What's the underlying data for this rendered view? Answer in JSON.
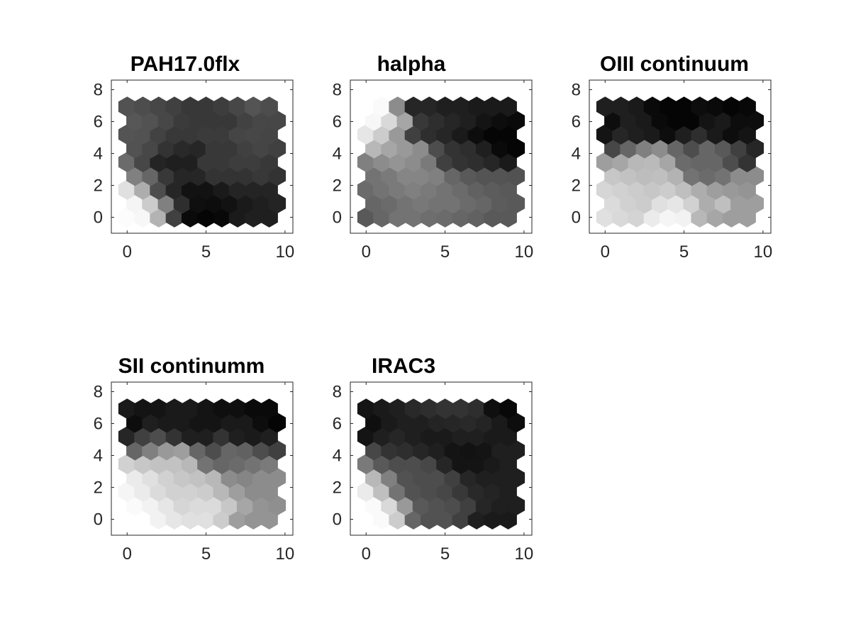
{
  "figure": {
    "background": "#ffffff"
  },
  "chart_data": [
    {
      "type": "heatmap",
      "title": "PAH17.0flx",
      "xlim": [
        -1,
        10.5
      ],
      "ylim": [
        -1,
        8.6
      ],
      "xticks": [
        "0",
        "5",
        "10"
      ],
      "yticks": [
        "0",
        "2",
        "4",
        "6",
        "8"
      ],
      "grid": false,
      "cell_layout": "hexagonal 10x9",
      "values": [
        [
          0.99,
          0.97,
          0.7,
          0.25,
          0.04,
          0.02,
          0.03,
          0.1,
          0.12,
          0.12
        ],
        [
          0.96,
          0.8,
          0.5,
          0.18,
          0.06,
          0.05,
          0.07,
          0.1,
          0.12,
          0.14
        ],
        [
          0.88,
          0.68,
          0.3,
          0.15,
          0.07,
          0.07,
          0.1,
          0.14,
          0.14,
          0.14
        ],
        [
          0.5,
          0.4,
          0.22,
          0.15,
          0.15,
          0.2,
          0.2,
          0.2,
          0.22,
          0.2
        ],
        [
          0.42,
          0.28,
          0.14,
          0.12,
          0.12,
          0.22,
          0.22,
          0.24,
          0.24,
          0.22
        ],
        [
          0.32,
          0.28,
          0.2,
          0.16,
          0.15,
          0.22,
          0.22,
          0.25,
          0.27,
          0.25
        ],
        [
          0.33,
          0.32,
          0.26,
          0.22,
          0.22,
          0.23,
          0.23,
          0.27,
          0.28,
          0.27
        ],
        [
          0.34,
          0.32,
          0.28,
          0.23,
          0.22,
          0.22,
          0.22,
          0.26,
          0.28,
          0.28
        ],
        [
          0.32,
          0.3,
          0.28,
          0.25,
          0.22,
          0.22,
          0.24,
          0.28,
          0.33,
          0.3
        ]
      ]
    },
    {
      "type": "heatmap",
      "title": "halpha",
      "xlim": [
        -1,
        10.5
      ],
      "ylim": [
        -1,
        8.6
      ],
      "xticks": [
        "0",
        "5",
        "10"
      ],
      "yticks": [
        "0",
        "2",
        "4",
        "6",
        "8"
      ],
      "grid": false,
      "cell_layout": "hexagonal 10x9",
      "values": [
        [
          0.35,
          0.4,
          0.45,
          0.45,
          0.43,
          0.42,
          0.4,
          0.38,
          0.35,
          0.35
        ],
        [
          0.4,
          0.42,
          0.45,
          0.47,
          0.45,
          0.45,
          0.42,
          0.4,
          0.36,
          0.35
        ],
        [
          0.42,
          0.45,
          0.48,
          0.5,
          0.48,
          0.45,
          0.42,
          0.38,
          0.36,
          0.35
        ],
        [
          0.45,
          0.48,
          0.52,
          0.52,
          0.5,
          0.4,
          0.35,
          0.33,
          0.33,
          0.32
        ],
        [
          0.5,
          0.55,
          0.58,
          0.55,
          0.48,
          0.25,
          0.2,
          0.18,
          0.15,
          0.1
        ],
        [
          0.72,
          0.65,
          0.6,
          0.55,
          0.3,
          0.2,
          0.18,
          0.12,
          0.04,
          0.02
        ],
        [
          0.9,
          0.8,
          0.6,
          0.25,
          0.18,
          0.15,
          0.1,
          0.05,
          0.02,
          0.02
        ],
        [
          0.97,
          0.85,
          0.65,
          0.22,
          0.18,
          0.15,
          0.12,
          0.08,
          0.05,
          0.04
        ],
        [
          1.0,
          0.98,
          0.55,
          0.15,
          0.15,
          0.12,
          0.12,
          0.1,
          0.1,
          0.1
        ]
      ]
    },
    {
      "type": "heatmap",
      "title": "OIII continuum",
      "xlim": [
        -1,
        10.5
      ],
      "ylim": [
        -1,
        8.6
      ],
      "xticks": [
        "0",
        "5",
        "10"
      ],
      "yticks": [
        "0",
        "2",
        "4",
        "6",
        "8"
      ],
      "grid": false,
      "cell_layout": "hexagonal 10x9",
      "values": [
        [
          0.88,
          0.85,
          0.83,
          0.92,
          0.96,
          0.95,
          0.72,
          0.65,
          0.62,
          0.62
        ],
        [
          0.86,
          0.82,
          0.8,
          0.88,
          0.9,
          0.82,
          0.68,
          0.75,
          0.62,
          0.62
        ],
        [
          0.84,
          0.82,
          0.8,
          0.78,
          0.8,
          0.75,
          0.68,
          0.62,
          0.6,
          0.58
        ],
        [
          0.78,
          0.76,
          0.74,
          0.75,
          0.7,
          0.45,
          0.42,
          0.45,
          0.55,
          0.55
        ],
        [
          0.62,
          0.65,
          0.72,
          0.73,
          0.65,
          0.42,
          0.4,
          0.4,
          0.3,
          0.2
        ],
        [
          0.28,
          0.4,
          0.5,
          0.55,
          0.4,
          0.3,
          0.4,
          0.35,
          0.25,
          0.15
        ],
        [
          0.08,
          0.15,
          0.12,
          0.1,
          0.05,
          0.12,
          0.18,
          0.1,
          0.05,
          0.08
        ],
        [
          0.05,
          0.12,
          0.1,
          0.04,
          0.02,
          0.02,
          0.08,
          0.1,
          0.05,
          0.05
        ],
        [
          0.12,
          0.12,
          0.1,
          0.04,
          0.02,
          0.02,
          0.05,
          0.04,
          0.02,
          0.03
        ]
      ]
    },
    {
      "type": "heatmap",
      "title": "SII continumm",
      "xlim": [
        -1,
        10.5
      ],
      "ylim": [
        -1,
        8.6
      ],
      "xticks": [
        "0",
        "5",
        "10"
      ],
      "yticks": [
        "0",
        "2",
        "4",
        "6",
        "8"
      ],
      "grid": false,
      "cell_layout": "hexagonal 10x9",
      "values": [
        [
          1.0,
          1.0,
          0.95,
          0.9,
          0.88,
          0.88,
          0.8,
          0.62,
          0.58,
          0.58
        ],
        [
          0.98,
          0.95,
          0.9,
          0.84,
          0.86,
          0.86,
          0.78,
          0.65,
          0.58,
          0.56
        ],
        [
          0.96,
          0.92,
          0.86,
          0.82,
          0.82,
          0.8,
          0.72,
          0.62,
          0.55,
          0.55
        ],
        [
          0.92,
          0.88,
          0.82,
          0.78,
          0.76,
          0.72,
          0.55,
          0.52,
          0.55,
          0.55
        ],
        [
          0.82,
          0.78,
          0.76,
          0.76,
          0.72,
          0.45,
          0.4,
          0.42,
          0.45,
          0.48
        ],
        [
          0.4,
          0.5,
          0.6,
          0.62,
          0.4,
          0.3,
          0.4,
          0.38,
          0.3,
          0.25
        ],
        [
          0.15,
          0.25,
          0.3,
          0.2,
          0.12,
          0.12,
          0.2,
          0.12,
          0.1,
          0.12
        ],
        [
          0.05,
          0.12,
          0.1,
          0.1,
          0.08,
          0.08,
          0.1,
          0.1,
          0.05,
          0.02
        ],
        [
          0.1,
          0.08,
          0.08,
          0.1,
          0.1,
          0.08,
          0.06,
          0.06,
          0.04,
          0.04
        ]
      ]
    },
    {
      "type": "heatmap",
      "title": "IRAC3",
      "xlim": [
        -1,
        10.5
      ],
      "ylim": [
        -1,
        8.6
      ],
      "xticks": [
        "0",
        "5",
        "10"
      ],
      "yticks": [
        "0",
        "2",
        "4",
        "6",
        "8"
      ],
      "grid": false,
      "cell_layout": "hexagonal 10x9",
      "values": [
        [
          1.0,
          0.98,
          0.8,
          0.4,
          0.32,
          0.32,
          0.25,
          0.12,
          0.1,
          0.1
        ],
        [
          0.98,
          0.85,
          0.6,
          0.35,
          0.32,
          0.3,
          0.25,
          0.15,
          0.12,
          0.12
        ],
        [
          0.92,
          0.75,
          0.45,
          0.32,
          0.3,
          0.28,
          0.22,
          0.16,
          0.14,
          0.12
        ],
        [
          0.72,
          0.5,
          0.32,
          0.3,
          0.3,
          0.25,
          0.15,
          0.12,
          0.12,
          0.12
        ],
        [
          0.48,
          0.35,
          0.3,
          0.3,
          0.28,
          0.15,
          0.08,
          0.08,
          0.1,
          0.12
        ],
        [
          0.28,
          0.2,
          0.18,
          0.15,
          0.12,
          0.08,
          0.07,
          0.08,
          0.12,
          0.12
        ],
        [
          0.08,
          0.12,
          0.15,
          0.12,
          0.1,
          0.1,
          0.12,
          0.12,
          0.1,
          0.1
        ],
        [
          0.06,
          0.1,
          0.12,
          0.12,
          0.14,
          0.15,
          0.16,
          0.14,
          0.1,
          0.05
        ],
        [
          0.08,
          0.1,
          0.12,
          0.16,
          0.18,
          0.2,
          0.2,
          0.18,
          0.06,
          0.03
        ]
      ]
    }
  ]
}
